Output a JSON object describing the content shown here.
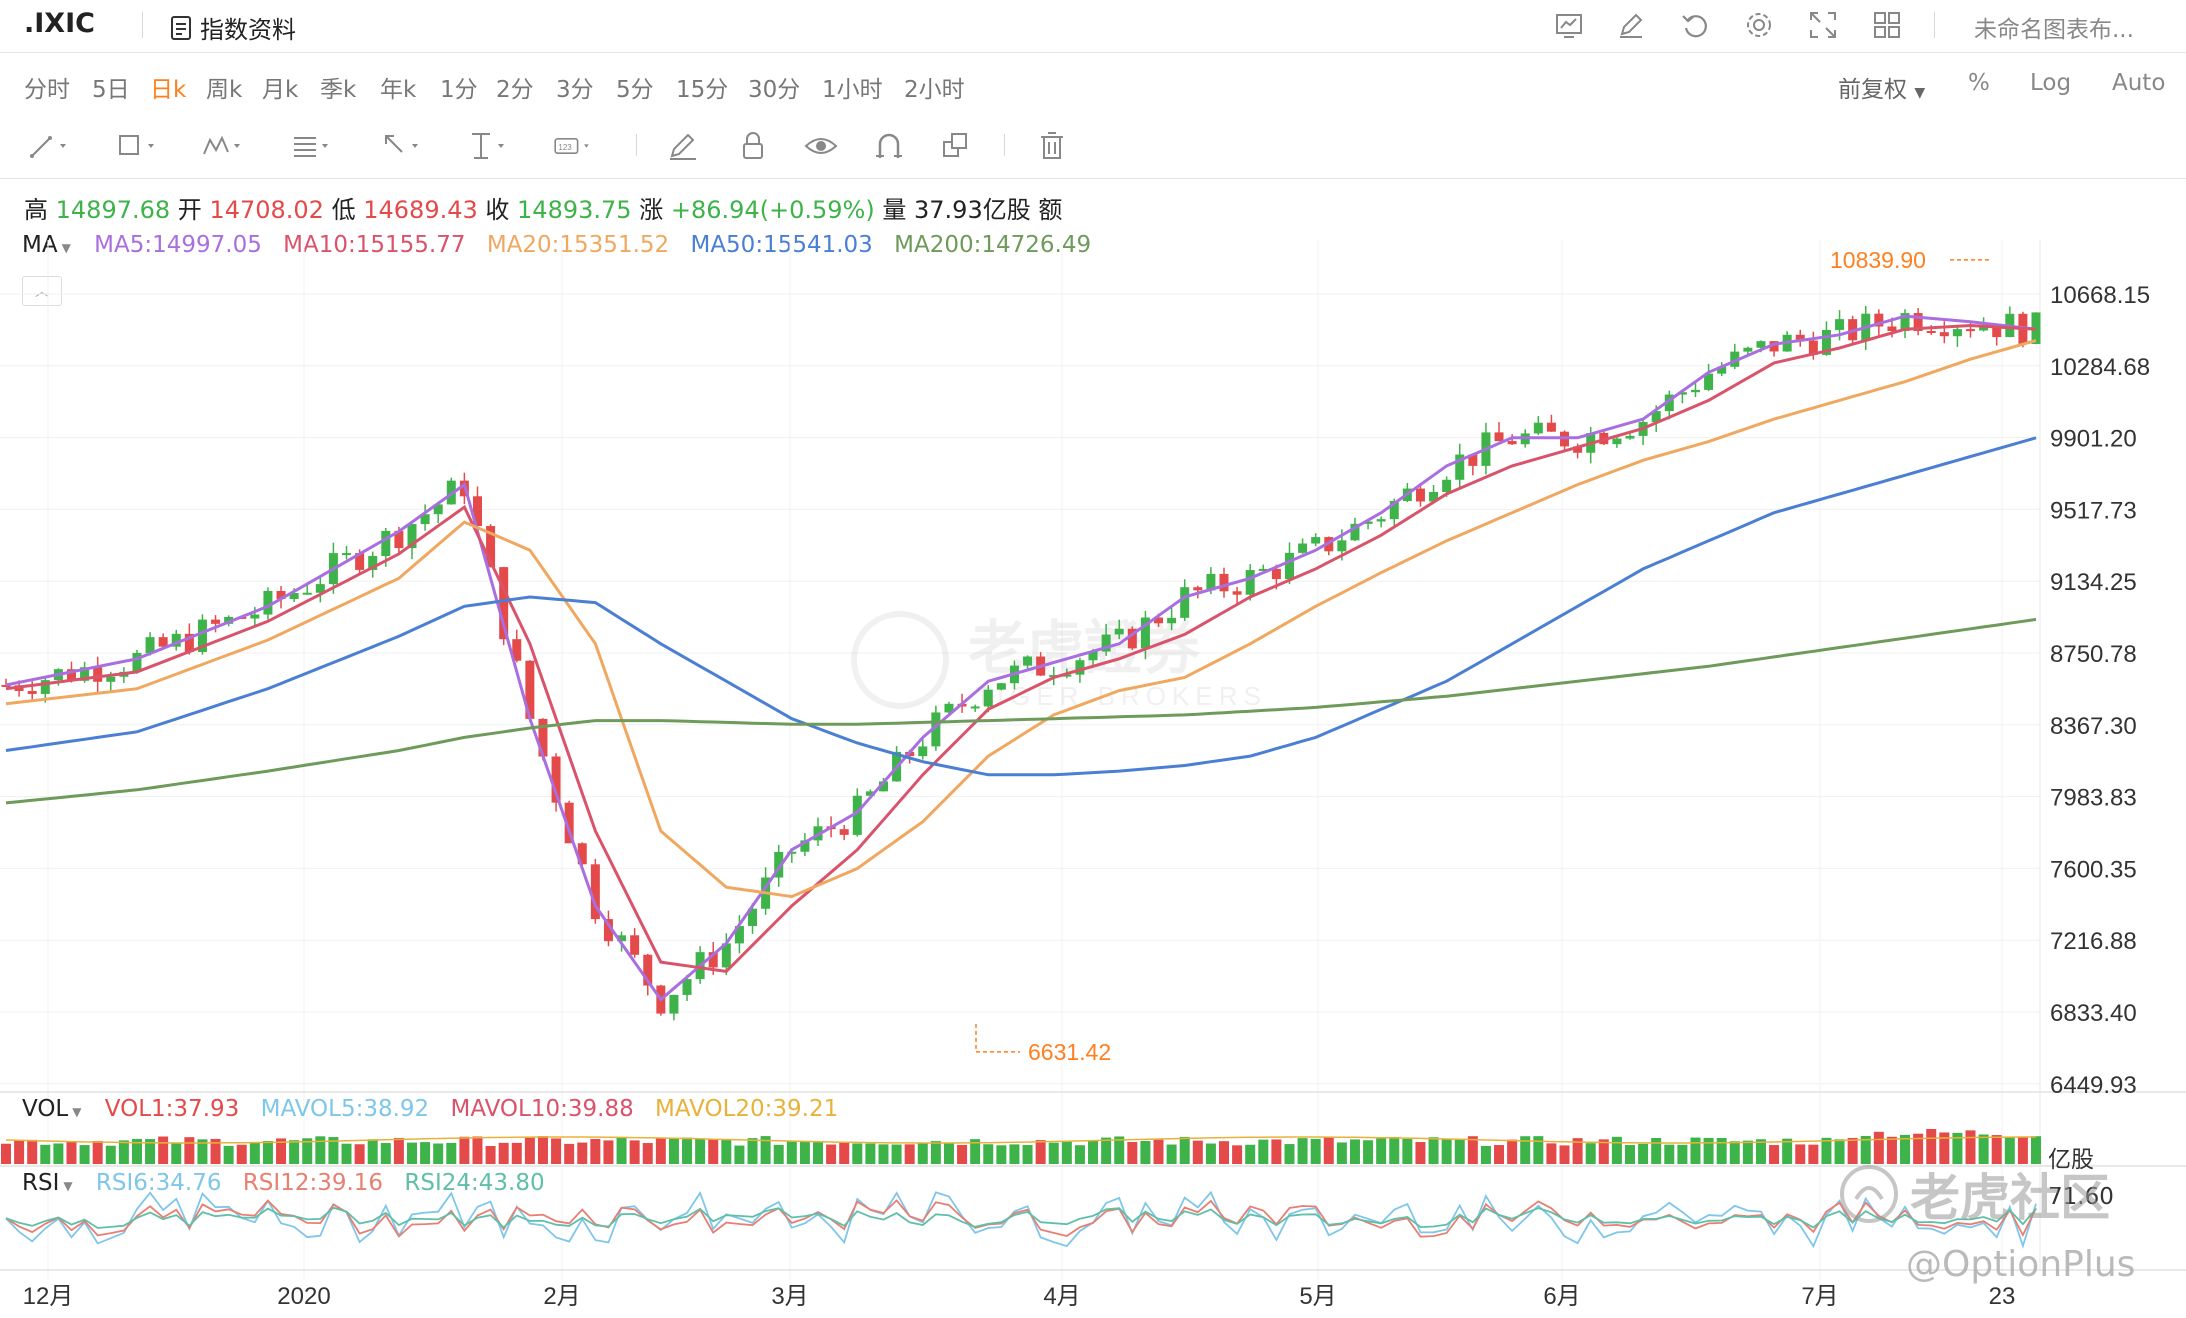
{
  "header": {
    "symbol": ".IXIC",
    "info_button_label": "指数资料",
    "layout_name": "未命名图表布..."
  },
  "toolbar_icons": [
    "indicator-icon",
    "edit-icon",
    "undo-icon",
    "settings-icon",
    "fullscreen-icon",
    "grid-layout-icon"
  ],
  "periods": {
    "items": [
      "分时",
      "5日",
      "日k",
      "周k",
      "月k",
      "季k",
      "年k",
      "1分",
      "2分",
      "3分",
      "5分",
      "15分",
      "30分",
      "1小时",
      "2小时"
    ],
    "active": "日k"
  },
  "right_controls": {
    "adjust": "前复权",
    "percent": "%",
    "log": "Log",
    "auto": "Auto"
  },
  "drawing_tools": [
    "line-tool-icon",
    "rectangle-tool-icon",
    "pattern-tool-icon",
    "fib-tool-icon",
    "arrow-tool-icon",
    "measure-tool-icon",
    "text-tool-icon",
    "pencil-icon",
    "lock-icon",
    "eye-icon",
    "magnet-icon",
    "clone-icon",
    "trash-icon"
  ],
  "quote": {
    "high_label": "高",
    "high": "14897.68",
    "open_label": "开",
    "open": "14708.02",
    "low_label": "低",
    "low": "14689.43",
    "close_label": "收",
    "close": "14893.75",
    "change_label": "涨",
    "change": "+86.94(+0.59%)",
    "volume_label": "量",
    "volume": "37.93亿股",
    "amount_label": "额"
  },
  "ma_legend": {
    "name": "MA",
    "ma5": "MA5:14997.05",
    "ma10": "MA10:15155.77",
    "ma20": "MA20:15351.52",
    "ma50": "MA50:15541.03",
    "ma200": "MA200:14726.49"
  },
  "vol_legend": {
    "name": "VOL",
    "vol1": "VOL1:37.93",
    "mavol5": "MAVOL5:38.92",
    "mavol10": "MAVOL10:39.88",
    "mavol20": "MAVOL20:39.21",
    "unit": "亿股"
  },
  "rsi_legend": {
    "name": "RSI",
    "rsi6": "RSI6:34.76",
    "rsi12": "RSI12:39.16",
    "rsi24": "RSI24:43.80",
    "axis_value": "71.60"
  },
  "price_axis": [
    "10668.15",
    "10284.68",
    "9901.20",
    "9517.73",
    "9134.25",
    "8750.78",
    "8367.30",
    "7983.83",
    "7600.35",
    "7216.88",
    "6833.40",
    "6449.93"
  ],
  "date_axis": [
    "12月",
    "2020",
    "2月",
    "3月",
    "4月",
    "5月",
    "6月",
    "7月",
    "23"
  ],
  "annotations": {
    "max": "10839.90",
    "min": "6631.42"
  },
  "watermarks": {
    "center_cn": "老虎證券",
    "center_en": "TIGER BROKERS",
    "corner_cn": "老虎社区",
    "corner_handle": "@OptionPlus"
  },
  "colors": {
    "up": "#3db34a",
    "down": "#e44a4a",
    "ma5": "#a96ee0",
    "ma10": "#d9536b",
    "ma20": "#f0a860",
    "ma50": "#4a7fd4",
    "ma200": "#6e9a5a",
    "accent": "#ff7f1e",
    "rsi6": "#7ec6ea",
    "rsi12": "#e77f72",
    "rsi24": "#5fbfa8"
  },
  "chart_data": {
    "type": "candlestick",
    "y_range": [
      6449.93,
      10839.9
    ],
    "ma_series": [
      {
        "name": "MA5",
        "x": [
          0,
          10,
          20,
          30,
          35,
          40,
          45,
          50,
          55,
          60,
          65,
          70,
          75,
          80,
          85,
          90,
          95,
          100,
          105,
          110,
          115,
          120,
          125,
          130,
          135,
          140,
          145,
          150,
          155
        ],
        "values": [
          8580,
          8720,
          9000,
          9400,
          9650,
          8400,
          7400,
          6900,
          7200,
          7700,
          7900,
          8300,
          8600,
          8700,
          8800,
          9050,
          9150,
          9300,
          9500,
          9750,
          9900,
          9900,
          10000,
          10250,
          10400,
          10450,
          10550,
          10520,
          10480
        ]
      },
      {
        "name": "MA10",
        "x": [
          0,
          10,
          20,
          30,
          35,
          40,
          45,
          50,
          55,
          60,
          65,
          70,
          75,
          80,
          85,
          90,
          95,
          100,
          105,
          110,
          115,
          120,
          125,
          130,
          135,
          140,
          145,
          150,
          155
        ],
        "values": [
          8560,
          8650,
          8920,
          9280,
          9530,
          8800,
          7800,
          7100,
          7050,
          7400,
          7700,
          8100,
          8450,
          8620,
          8720,
          8850,
          9050,
          9200,
          9380,
          9600,
          9750,
          9850,
          9950,
          10100,
          10300,
          10380,
          10480,
          10500,
          10480
        ]
      },
      {
        "name": "MA20",
        "x": [
          0,
          10,
          20,
          30,
          35,
          40,
          45,
          50,
          55,
          60,
          65,
          70,
          75,
          80,
          85,
          90,
          95,
          100,
          105,
          110,
          115,
          120,
          125,
          130,
          135,
          140,
          145,
          150,
          155
        ],
        "values": [
          8480,
          8560,
          8820,
          9150,
          9450,
          9300,
          8800,
          7800,
          7500,
          7450,
          7600,
          7850,
          8200,
          8420,
          8550,
          8620,
          8800,
          9000,
          9180,
          9350,
          9500,
          9650,
          9780,
          9880,
          10000,
          10100,
          10200,
          10320,
          10420
        ]
      },
      {
        "name": "MA50",
        "x": [
          0,
          10,
          20,
          30,
          35,
          40,
          45,
          50,
          55,
          60,
          65,
          70,
          75,
          80,
          85,
          90,
          95,
          100,
          105,
          110,
          115,
          120,
          125,
          130,
          135,
          140,
          145,
          150,
          155
        ],
        "values": [
          8230,
          8330,
          8560,
          8840,
          9000,
          9050,
          9020,
          8800,
          8600,
          8400,
          8270,
          8170,
          8100,
          8100,
          8120,
          8150,
          8200,
          8300,
          8450,
          8600,
          8800,
          9000,
          9200,
          9350,
          9500,
          9600,
          9700,
          9800,
          9900
        ]
      },
      {
        "name": "MA200",
        "x": [
          0,
          10,
          20,
          30,
          35,
          40,
          45,
          50,
          55,
          60,
          65,
          70,
          75,
          80,
          85,
          90,
          95,
          100,
          105,
          110,
          115,
          120,
          125,
          130,
          135,
          140,
          145,
          150,
          155
        ],
        "values": [
          7950,
          8020,
          8120,
          8230,
          8300,
          8350,
          8390,
          8390,
          8380,
          8370,
          8370,
          8380,
          8390,
          8400,
          8410,
          8420,
          8440,
          8460,
          8490,
          8520,
          8560,
          8600,
          8640,
          8680,
          8730,
          8780,
          8830,
          8880,
          8930
        ]
      }
    ],
    "max_point": 10839.9,
    "min_point": 6631.42
  }
}
